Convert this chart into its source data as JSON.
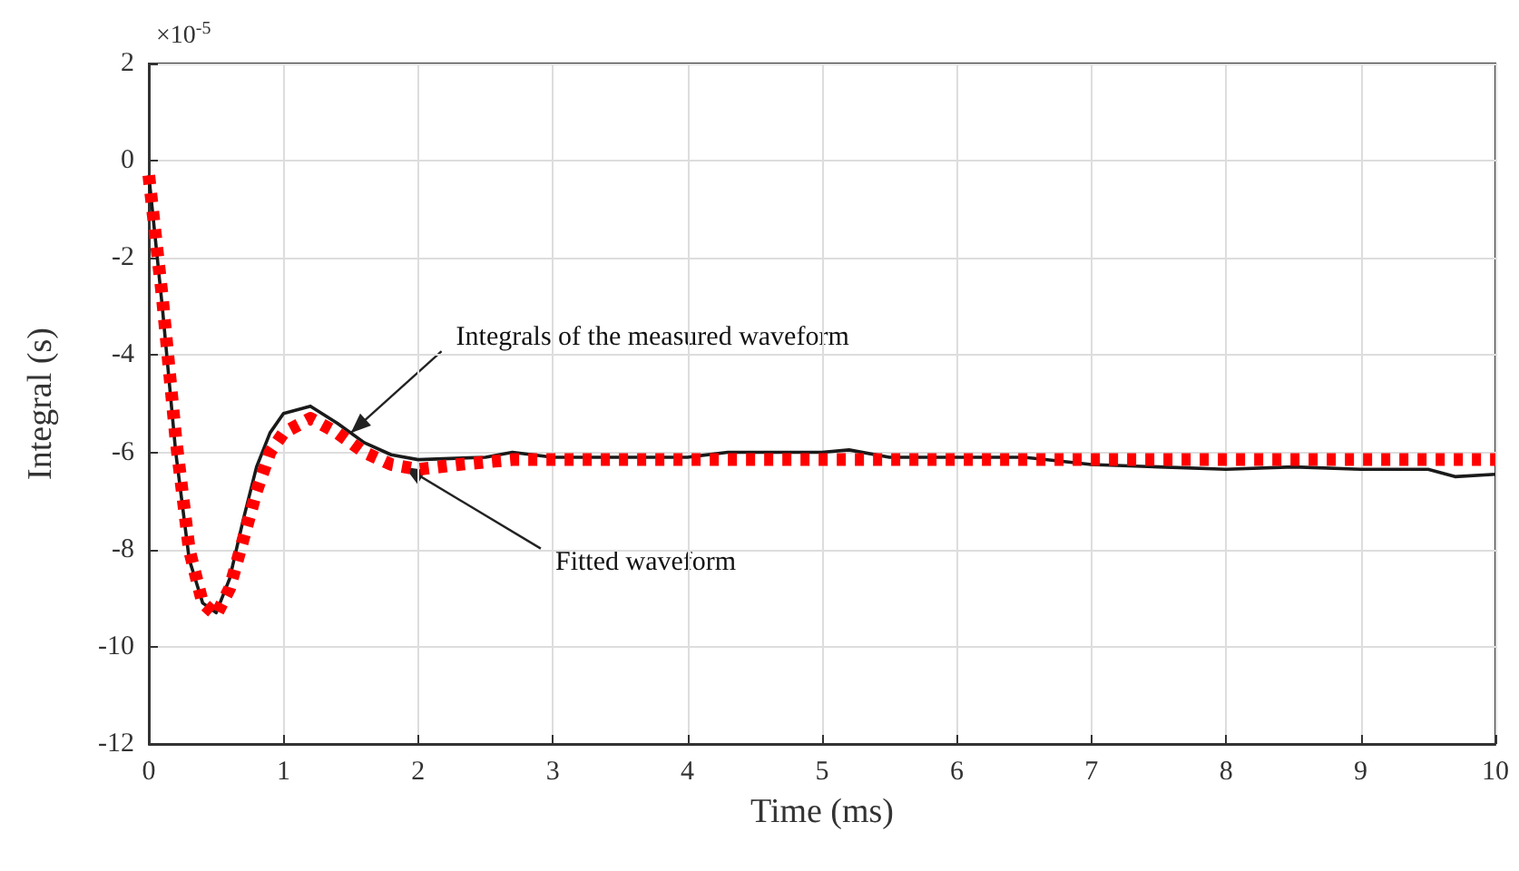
{
  "chart_data": {
    "type": "line",
    "xlabel": "Time (ms)",
    "ylabel": "Integral (s)",
    "xlim": [
      0,
      10
    ],
    "xticks": [
      0,
      1,
      2,
      3,
      4,
      5,
      6,
      7,
      8,
      9,
      10
    ],
    "ylim": [
      -12,
      2
    ],
    "yticks": [
      -12,
      -10,
      -8,
      -6,
      -4,
      -2,
      0,
      2
    ],
    "grid": true,
    "marker": "none",
    "annotations": [
      "×10$^{-5}$",
      {
        "text": "Integrals of the measured waveform",
        "x": 1.5,
        "y": -5.6
      },
      {
        "text": "Fitted waveform",
        "x": 1.9,
        "y": -6.3
      }
    ],
    "series": [
      {
        "color": "#1a1a1a",
        "line_style": "solid",
        "x": [
          0,
          0.1,
          0.2,
          0.3,
          0.4,
          0.5,
          0.6,
          0.7,
          0.8,
          0.9,
          1.0,
          1.2,
          1.4,
          1.6,
          1.8,
          2.0,
          2.5,
          2.7,
          3,
          3.5,
          4,
          4.3,
          5,
          5.2,
          5.5,
          6,
          6.5,
          7,
          7.5,
          8,
          8.5,
          9,
          9.5,
          9.7,
          10
        ],
        "values": [
          -0.3,
          -3,
          -6,
          -8.2,
          -9.1,
          -9.3,
          -8.6,
          -7.4,
          -6.3,
          -5.6,
          -5.2,
          -5.05,
          -5.4,
          -5.8,
          -6.05,
          -6.15,
          -6.1,
          -6.0,
          -6.1,
          -6.1,
          -6.1,
          -6.0,
          -6.0,
          -5.95,
          -6.1,
          -6.1,
          -6.1,
          -6.25,
          -6.3,
          -6.35,
          -6.3,
          -6.35,
          -6.35,
          -6.5,
          -6.45
        ]
      },
      {
        "color": "#ff0000",
        "line_style": "dotted",
        "x": [
          0,
          0.1,
          0.2,
          0.3,
          0.4,
          0.5,
          0.6,
          0.7,
          0.8,
          0.9,
          1.0,
          1.2,
          1.4,
          1.6,
          1.8,
          2.0,
          2.3,
          2.7,
          3,
          4,
          5,
          10
        ],
        "values": [
          -0.3,
          -2.8,
          -5.7,
          -8,
          -9.1,
          -9.35,
          -8.8,
          -7.8,
          -6.8,
          -6.0,
          -5.6,
          -5.3,
          -5.6,
          -6.0,
          -6.25,
          -6.35,
          -6.25,
          -6.15,
          -6.15,
          -6.15,
          -6.15,
          -6.15
        ]
      }
    ]
  }
}
